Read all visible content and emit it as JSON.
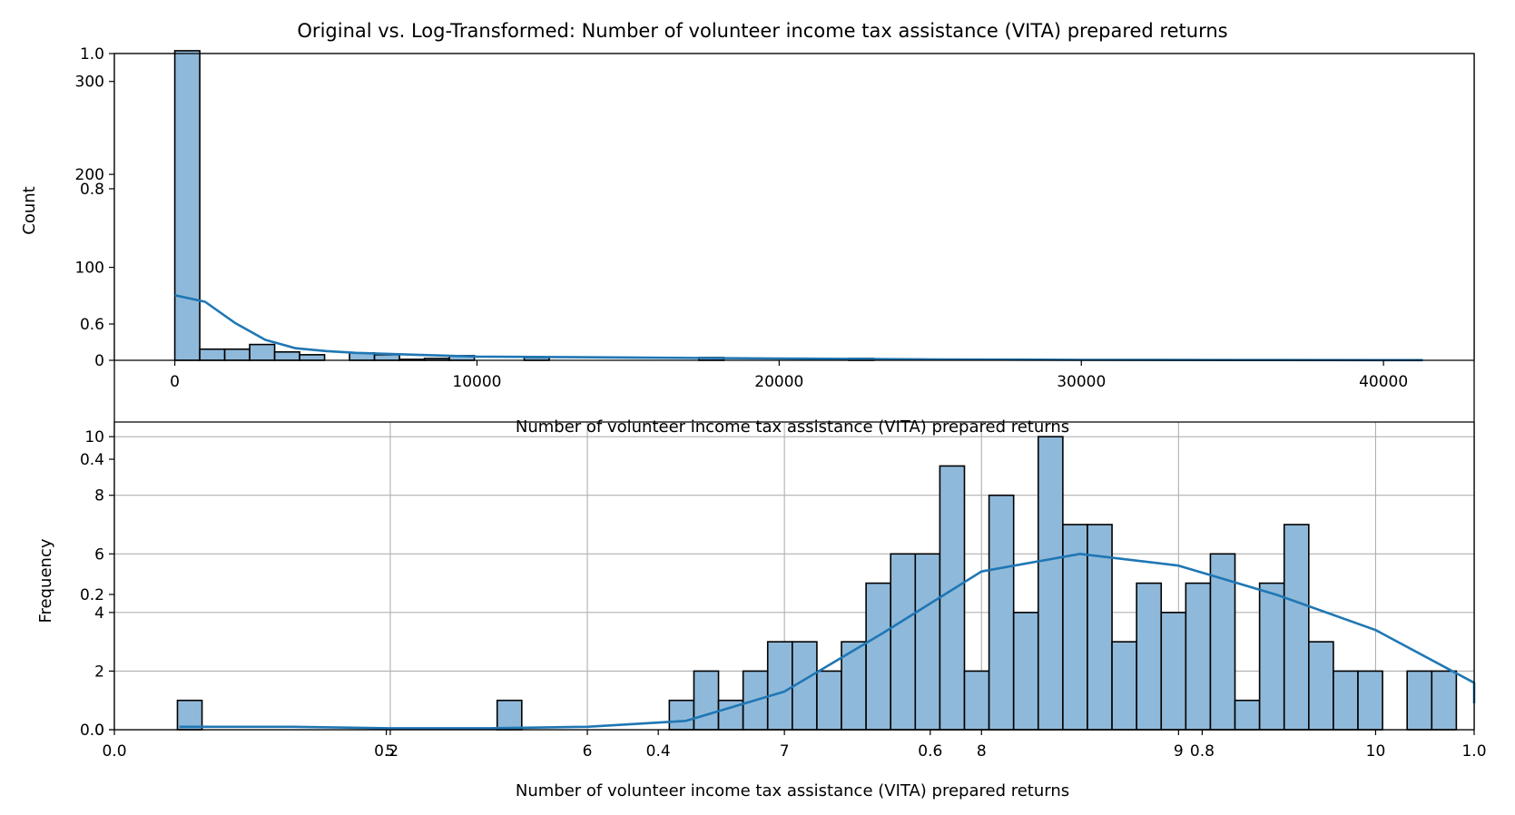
{
  "chart_data": [
    {
      "type": "axes-overlay",
      "title": "",
      "xlim": [
        0,
        1
      ],
      "ylim": [
        0,
        1
      ],
      "x_ticks": [
        "0.0",
        "0.2",
        "0.4",
        "0.6",
        "0.8",
        "1.0"
      ],
      "y_ticks": [
        "0.0",
        "0.2",
        "0.4",
        "0.6",
        "0.8",
        "1.0"
      ]
    },
    {
      "type": "bar",
      "title": "Original vs. Log-Transformed: Number of volunteer income tax assistance (VITA) prepared returns",
      "xlabel": "Number of volunteer income tax assistance (VITA) prepared returns",
      "ylabel": "Count",
      "xlim": [
        -2000,
        43000
      ],
      "ylim": [
        0,
        330
      ],
      "x_ticks": [
        "0",
        "10000",
        "20000",
        "30000",
        "40000"
      ],
      "x_tick_values": [
        0,
        10000,
        20000,
        30000,
        40000
      ],
      "y_ticks": [
        "0",
        "100",
        "200",
        "300"
      ],
      "y_tick_values": [
        0,
        100,
        200,
        300
      ],
      "bin_start": 0,
      "bin_width": 826,
      "counts": [
        333,
        12,
        12,
        17,
        9,
        6,
        0,
        8,
        6,
        1,
        2,
        5,
        0,
        0,
        3,
        0,
        0,
        0,
        0,
        0,
        0,
        3,
        0,
        0,
        0,
        0,
        0,
        2,
        0,
        0,
        0,
        0,
        0,
        0,
        0,
        0,
        0,
        0,
        0,
        0,
        0,
        0,
        0,
        0,
        0,
        0,
        0,
        0,
        0,
        0
      ],
      "kde": {
        "x": [
          0,
          1000,
          2000,
          3000,
          4000,
          5000,
          6000,
          8000,
          10000,
          15000,
          20000,
          25000,
          30000,
          35000,
          41300
        ],
        "y": [
          70,
          63,
          40,
          22,
          13,
          10,
          8,
          6,
          4,
          3,
          2,
          1,
          0.5,
          0.3,
          0.2
        ]
      },
      "color": "#1f77b4"
    },
    {
      "type": "bar",
      "title": "",
      "xlabel": "Number of volunteer income tax assistance (VITA) prepared returns",
      "ylabel": "Frequency",
      "xlim": [
        3.6,
        10.5
      ],
      "ylim": [
        0,
        10.5
      ],
      "x_ticks": [
        "5",
        "6",
        "7",
        "8",
        "9",
        "10"
      ],
      "x_tick_values": [
        5,
        6,
        7,
        8,
        9,
        10
      ],
      "y_ticks": [
        "0",
        "2",
        "4",
        "6",
        "8",
        "10"
      ],
      "y_tick_values": [
        0,
        2,
        4,
        6,
        8,
        10
      ],
      "grid": true,
      "bin_start": 3.92,
      "bin_width": 0.1248,
      "counts": [
        1,
        0,
        0,
        0,
        0,
        0,
        0,
        0,
        0,
        0,
        0,
        0,
        0,
        1,
        0,
        0,
        0,
        0,
        0,
        0,
        1,
        2,
        1,
        2,
        3,
        3,
        2,
        3,
        5,
        6,
        6,
        9,
        2,
        8,
        4,
        10,
        7,
        7,
        3,
        5,
        4,
        5,
        6,
        1,
        5,
        7,
        3,
        2,
        2,
        0,
        2,
        2
      ],
      "kde": {
        "x": [
          3.93,
          4.5,
          5.0,
          5.5,
          6.0,
          6.5,
          7.0,
          7.5,
          8.0,
          8.5,
          9.0,
          9.5,
          10.0,
          10.5,
          10.6
        ],
        "y": [
          0.1,
          0.1,
          0.05,
          0.05,
          0.1,
          0.3,
          1.3,
          3.3,
          5.4,
          6.0,
          5.6,
          4.6,
          3.4,
          1.6,
          0.9
        ]
      },
      "color": "#1f77b4"
    }
  ]
}
